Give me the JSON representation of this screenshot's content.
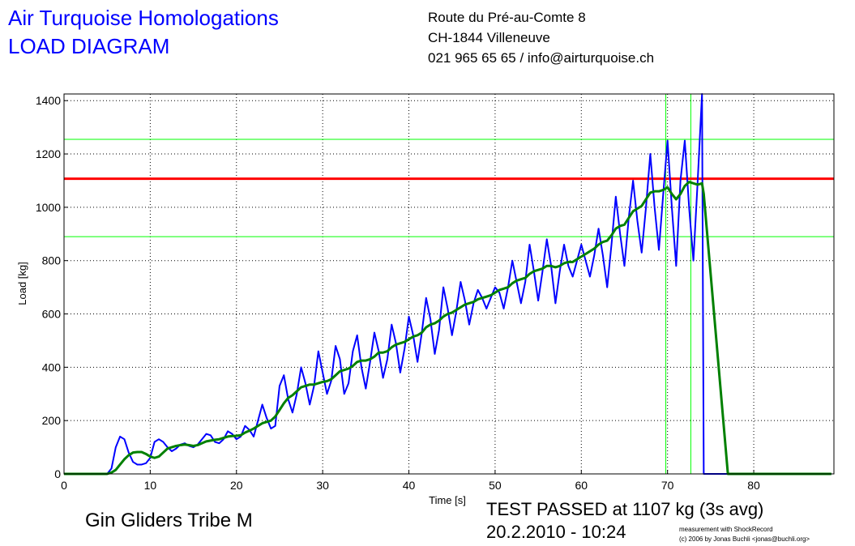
{
  "header": {
    "title": "Air Turquoise Homologations",
    "subtitle": "LOAD DIAGRAM",
    "address": [
      "Route du Pré-au-Comte 8",
      "CH-1844 Villeneuve",
      "021 965 65 65 / info@airturquoise.ch"
    ]
  },
  "chart_data": {
    "type": "line",
    "xlabel": "Time [s]",
    "ylabel": "Load [kg]",
    "xlim": [
      0,
      89.3
    ],
    "ylim": [
      0,
      1425
    ],
    "xticks": [
      0,
      10,
      20,
      30,
      40,
      50,
      60,
      70,
      80
    ],
    "yticks": [
      0,
      200,
      400,
      600,
      800,
      1000,
      1200,
      1400
    ],
    "grid": true,
    "x": [
      0,
      5,
      5.5,
      6,
      6.5,
      7,
      7.5,
      8,
      8.5,
      9,
      9.5,
      10,
      10.5,
      11,
      11.5,
      12,
      12.5,
      13,
      13.5,
      14,
      14.5,
      15,
      15.5,
      16,
      16.5,
      17,
      17.5,
      18,
      18.5,
      19,
      19.5,
      20,
      20.5,
      21,
      21.5,
      22,
      22.5,
      23,
      23.5,
      24,
      24.5,
      25,
      25.5,
      26,
      26.5,
      27,
      27.5,
      28,
      28.5,
      29,
      29.5,
      30,
      30.5,
      31,
      31.5,
      32,
      32.5,
      33,
      33.5,
      34,
      34.5,
      35,
      35.5,
      36,
      36.5,
      37,
      37.5,
      38,
      38.5,
      39,
      39.5,
      40,
      40.5,
      41,
      41.5,
      42,
      42.5,
      43,
      43.5,
      44,
      44.5,
      45,
      45.5,
      46,
      46.5,
      47,
      47.5,
      48,
      48.5,
      49,
      49.5,
      50,
      50.5,
      51,
      51.5,
      52,
      52.5,
      53,
      53.5,
      54,
      54.5,
      55,
      55.5,
      56,
      56.5,
      57,
      57.5,
      58,
      58.5,
      59,
      59.5,
      60,
      60.5,
      61,
      61.5,
      62,
      62.5,
      63,
      63.5,
      64,
      64.5,
      65,
      65.5,
      66,
      66.5,
      67,
      67.5,
      68,
      68.5,
      69,
      69.5,
      70,
      70.5,
      71,
      71.5,
      72,
      72.5,
      73,
      73.5,
      74,
      74.2,
      77,
      89
    ],
    "series": [
      {
        "color": "#0000ff",
        "width": 2,
        "values": [
          0,
          0,
          20,
          100,
          140,
          130,
          80,
          45,
          35,
          35,
          40,
          60,
          120,
          130,
          120,
          100,
          85,
          95,
          110,
          115,
          105,
          100,
          110,
          130,
          150,
          145,
          120,
          115,
          130,
          160,
          150,
          130,
          140,
          180,
          165,
          140,
          200,
          260,
          210,
          170,
          180,
          330,
          370,
          280,
          230,
          300,
          400,
          340,
          260,
          330,
          460,
          380,
          300,
          350,
          480,
          430,
          300,
          340,
          460,
          520,
          400,
          320,
          420,
          530,
          460,
          360,
          430,
          560,
          490,
          380,
          470,
          590,
          520,
          420,
          530,
          660,
          580,
          450,
          540,
          700,
          620,
          520,
          610,
          720,
          650,
          560,
          640,
          690,
          660,
          620,
          660,
          700,
          680,
          620,
          700,
          800,
          720,
          640,
          720,
          860,
          760,
          650,
          760,
          880,
          780,
          640,
          760,
          860,
          780,
          740,
          800,
          860,
          800,
          740,
          820,
          920,
          820,
          700,
          860,
          1040,
          900,
          780,
          960,
          1100,
          950,
          830,
          1000,
          1200,
          1000,
          840,
          1050,
          1250,
          1000,
          780,
          1100,
          1250,
          1000,
          800,
          1100,
          1425,
          0,
          0,
          0
        ]
      },
      {
        "color": "#008000",
        "width": 3,
        "values": [
          0,
          0,
          5,
          15,
          35,
          55,
          70,
          80,
          82,
          82,
          75,
          65,
          60,
          65,
          80,
          95,
          100,
          105,
          108,
          110,
          108,
          105,
          108,
          115,
          122,
          125,
          128,
          130,
          135,
          140,
          142,
          143,
          145,
          155,
          162,
          170,
          180,
          190,
          195,
          200,
          215,
          240,
          265,
          285,
          295,
          310,
          325,
          330,
          335,
          335,
          340,
          345,
          348,
          355,
          370,
          385,
          390,
          395,
          405,
          420,
          425,
          425,
          430,
          440,
          455,
          455,
          460,
          475,
          485,
          490,
          495,
          505,
          515,
          520,
          530,
          550,
          560,
          565,
          575,
          590,
          600,
          605,
          615,
          625,
          635,
          640,
          645,
          655,
          660,
          665,
          670,
          680,
          690,
          695,
          700,
          715,
          725,
          730,
          735,
          750,
          760,
          765,
          770,
          780,
          780,
          775,
          780,
          790,
          795,
          795,
          805,
          815,
          825,
          835,
          845,
          860,
          870,
          875,
          895,
          920,
          930,
          935,
          960,
          985,
          995,
          1005,
          1030,
          1055,
          1060,
          1060,
          1065,
          1075,
          1050,
          1030,
          1050,
          1080,
          1095,
          1090,
          1085,
          1090,
          1050,
          0,
          0
        ]
      }
    ],
    "hlines": [
      {
        "value": 1107,
        "color": "#ff0000",
        "width": 3
      },
      {
        "value": 1255,
        "color": "#00ff00",
        "width": 1
      },
      {
        "value": 890,
        "color": "#00ff00",
        "width": 1
      }
    ],
    "vlines": [
      {
        "value": 69.8,
        "color": "#00ff00",
        "width": 1
      },
      {
        "value": 72.7,
        "color": "#00ff00",
        "width": 1
      }
    ]
  },
  "footer": {
    "glider": "Gin Gliders Tribe M",
    "result": "TEST PASSED at 1107 kg (3s avg)",
    "date": "20.2.2010 - 10:24",
    "credit": [
      "measurement with ShockRecord",
      "(c) 2006 by Jonas Buchli <jonas@buchli.org>"
    ]
  }
}
